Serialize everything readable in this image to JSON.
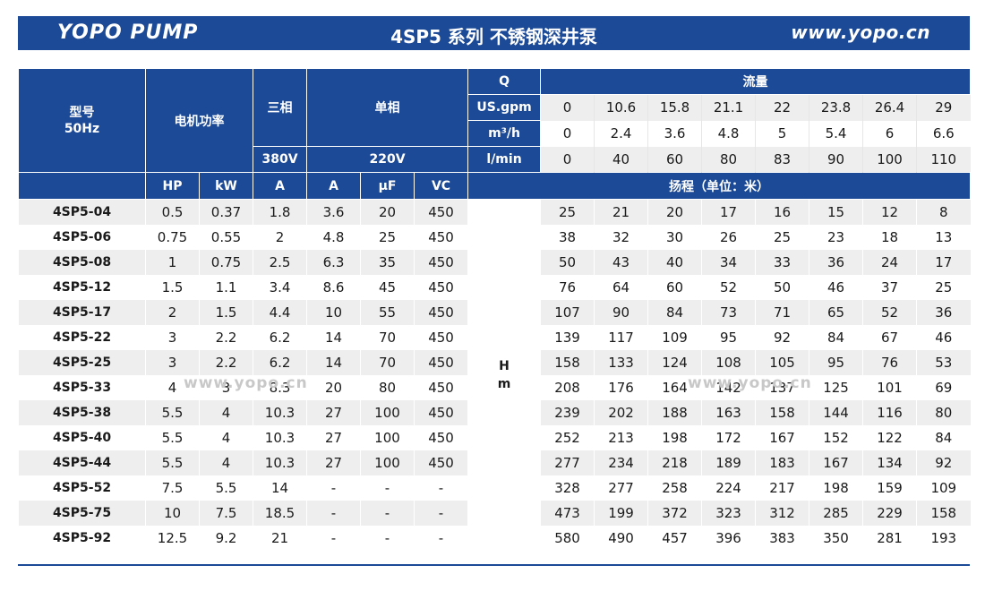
{
  "banner": {
    "brand": "YOPO PUMP",
    "title": "4SP5 系列 不锈钢深井泵",
    "website": "www.yopo.cn"
  },
  "table": {
    "headers": {
      "model": "型号\n50Hz",
      "motor_power": "电机功率",
      "three_phase": "三相",
      "single_phase": "单相",
      "q": "Q",
      "flow": "流量",
      "v380": "380V",
      "v220": "220V",
      "hp": "HP",
      "kw": "kW",
      "amp3": "A",
      "amp1": "A",
      "uf": "μF",
      "vc": "VC",
      "head": "扬程（单位：米）",
      "h_unit": "H\nm"
    },
    "flow_rows": [
      {
        "unit": "US.gpm",
        "values": [
          "0",
          "10.6",
          "15.8",
          "21.1",
          "22",
          "23.8",
          "26.4",
          "29"
        ]
      },
      {
        "unit": "m³/h",
        "values": [
          "0",
          "2.4",
          "3.6",
          "4.8",
          "5",
          "5.4",
          "6",
          "6.6"
        ]
      },
      {
        "unit": "l/min",
        "values": [
          "0",
          "40",
          "60",
          "80",
          "83",
          "90",
          "100",
          "110"
        ]
      }
    ],
    "rows": [
      [
        "4SP5-04",
        "0.5",
        "0.37",
        "1.8",
        "3.6",
        "20",
        "450",
        "25",
        "21",
        "20",
        "17",
        "16",
        "15",
        "12",
        "8"
      ],
      [
        "4SP5-06",
        "0.75",
        "0.55",
        "2",
        "4.8",
        "25",
        "450",
        "38",
        "32",
        "30",
        "26",
        "25",
        "23",
        "18",
        "13"
      ],
      [
        "4SP5-08",
        "1",
        "0.75",
        "2.5",
        "6.3",
        "35",
        "450",
        "50",
        "43",
        "40",
        "34",
        "33",
        "36",
        "24",
        "17"
      ],
      [
        "4SP5-12",
        "1.5",
        "1.1",
        "3.4",
        "8.6",
        "45",
        "450",
        "76",
        "64",
        "60",
        "52",
        "50",
        "46",
        "37",
        "25"
      ],
      [
        "4SP5-17",
        "2",
        "1.5",
        "4.4",
        "10",
        "55",
        "450",
        "107",
        "90",
        "84",
        "73",
        "71",
        "65",
        "52",
        "36"
      ],
      [
        "4SP5-22",
        "3",
        "2.2",
        "6.2",
        "14",
        "70",
        "450",
        "139",
        "117",
        "109",
        "95",
        "92",
        "84",
        "67",
        "46"
      ],
      [
        "4SP5-25",
        "3",
        "2.2",
        "6.2",
        "14",
        "70",
        "450",
        "158",
        "133",
        "124",
        "108",
        "105",
        "95",
        "76",
        "53"
      ],
      [
        "4SP5-33",
        "4",
        "3",
        "8.3",
        "20",
        "80",
        "450",
        "208",
        "176",
        "164",
        "142",
        "137",
        "125",
        "101",
        "69"
      ],
      [
        "4SP5-38",
        "5.5",
        "4",
        "10.3",
        "27",
        "100",
        "450",
        "239",
        "202",
        "188",
        "163",
        "158",
        "144",
        "116",
        "80"
      ],
      [
        "4SP5-40",
        "5.5",
        "4",
        "10.3",
        "27",
        "100",
        "450",
        "252",
        "213",
        "198",
        "172",
        "167",
        "152",
        "122",
        "84"
      ],
      [
        "4SP5-44",
        "5.5",
        "4",
        "10.3",
        "27",
        "100",
        "450",
        "277",
        "234",
        "218",
        "189",
        "183",
        "167",
        "134",
        "92"
      ],
      [
        "4SP5-52",
        "7.5",
        "5.5",
        "14",
        "-",
        "-",
        "-",
        "328",
        "277",
        "258",
        "224",
        "217",
        "198",
        "159",
        "109"
      ],
      [
        "4SP5-75",
        "10",
        "7.5",
        "18.5",
        "-",
        "-",
        "-",
        "473",
        "199",
        "372",
        "323",
        "312",
        "285",
        "229",
        "158"
      ],
      [
        "4SP5-92",
        "12.5",
        "9.2",
        "21",
        "-",
        "-",
        "-",
        "580",
        "490",
        "457",
        "396",
        "383",
        "350",
        "281",
        "193"
      ]
    ]
  },
  "watermark": "www.yopo.cn",
  "colors": {
    "header_blue": "#1d4a96",
    "stripe": "#eeeeee",
    "text": "#1a1a1a"
  }
}
